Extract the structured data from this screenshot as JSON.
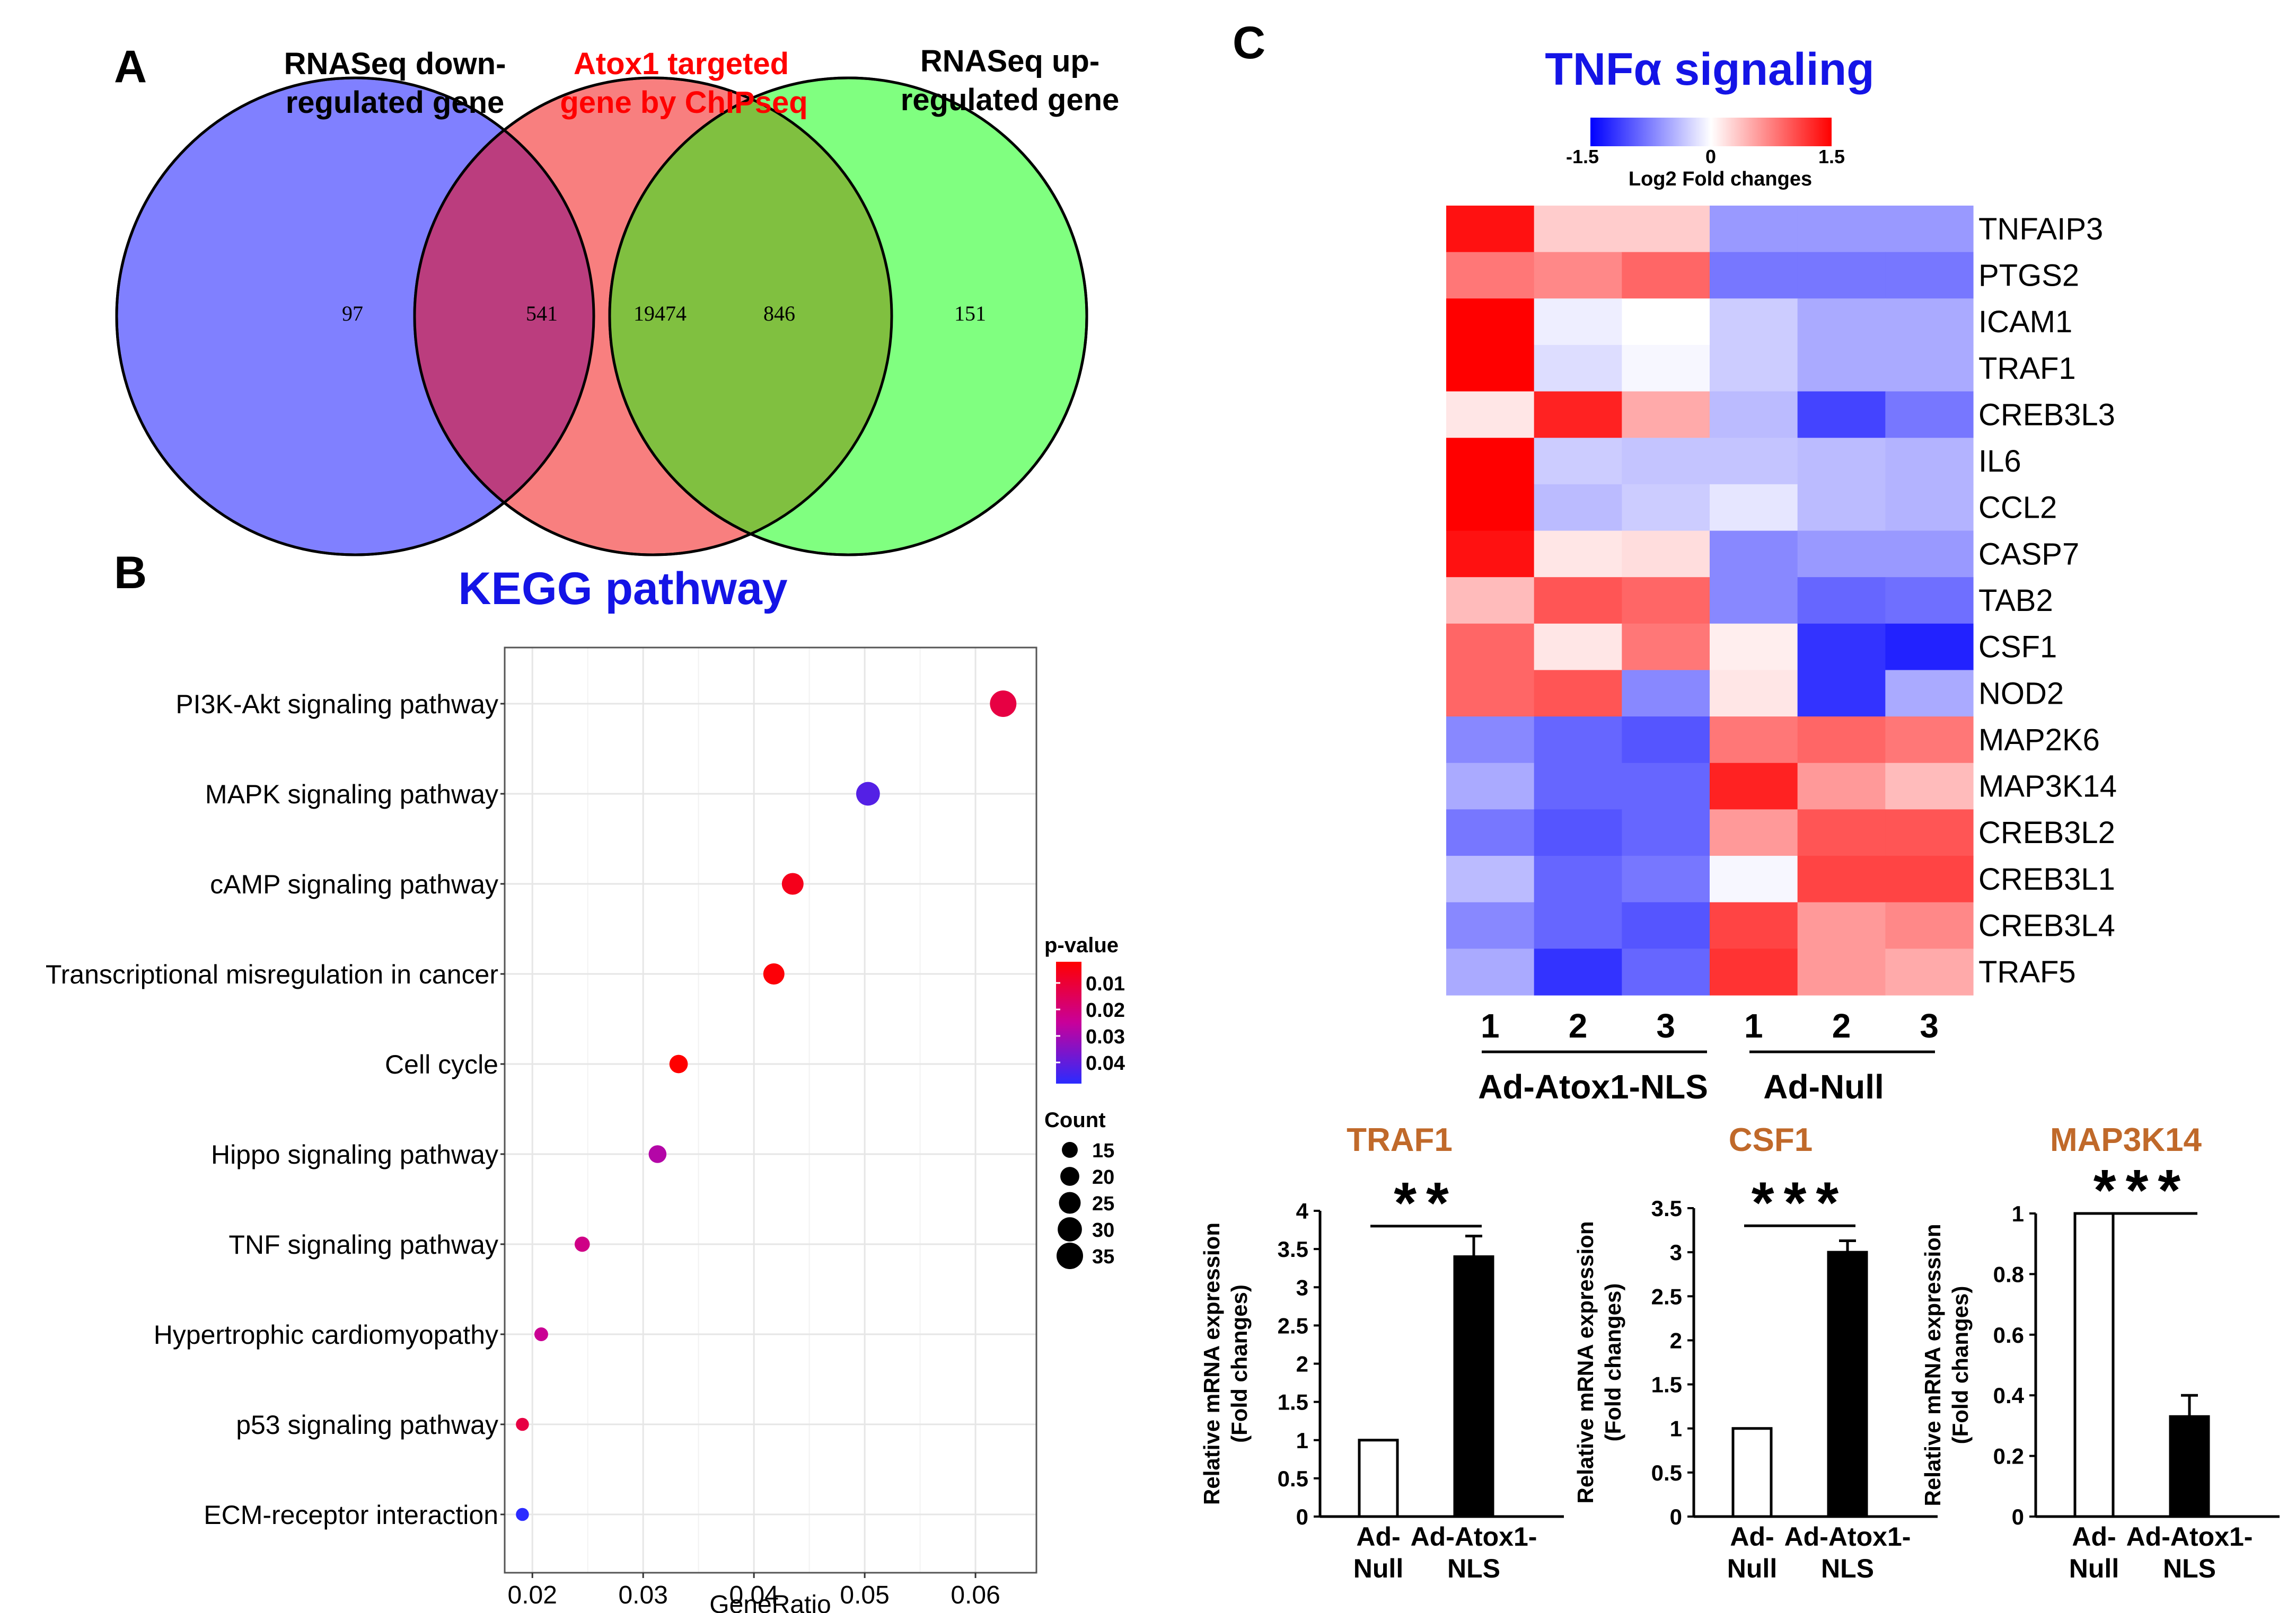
{
  "panels": {
    "a_label": "A",
    "b_label": "B",
    "c_label": "C"
  },
  "venn": {
    "sets": [
      {
        "name_line1": "RNASeq down-",
        "name_line2": "regulated gene",
        "color": "#8080ff",
        "title_color": "#000000",
        "only_count": "97"
      },
      {
        "name_line1": "Atox1 targeted",
        "name_line2": "gene by ChIPseq",
        "color": "#f87f7f",
        "title_color": "#ff0000",
        "only_count": "19474"
      },
      {
        "name_line1": "RNASeq up-",
        "name_line2": "regulated gene",
        "color": "#80ff80",
        "title_color": "#000000",
        "only_count": "151"
      }
    ],
    "overlap_down_chip": "541",
    "overlap_chip_up": "846",
    "overlap_colors": {
      "down_chip": "#bb3d7e",
      "chip_up": "#80c040"
    }
  },
  "chart_data": [
    {
      "type": "scatter",
      "title": "KEGG pathway",
      "xlabel": "GeneRatio",
      "ylabel": "",
      "xlim": [
        0.0175,
        0.0655
      ],
      "x_ticks": [
        "0.02",
        "0.03",
        "0.04",
        "0.05",
        "0.06"
      ],
      "x_tick_values": [
        0.02,
        0.03,
        0.04,
        0.05,
        0.06
      ],
      "categories": [
        "PI3K-Akt signaling pathway",
        "MAPK signaling pathway",
        "cAMP signaling pathway",
        "Transcriptional misregulation in cancer",
        "Cell cycle",
        "Hippo signaling pathway",
        "TNF signaling pathway",
        "Hypertrophic cardiomyopathy",
        "p53 signaling pathway",
        "ECM-receptor interaction"
      ],
      "gene_ratio": [
        0.0625,
        0.0503,
        0.0435,
        0.0418,
        0.0332,
        0.0313,
        0.0245,
        0.0208,
        0.0191,
        0.0191
      ],
      "count": [
        35,
        29,
        25,
        24,
        19,
        18,
        14,
        12,
        11,
        11
      ],
      "p_value": [
        0.012,
        0.042,
        0.006,
        0.003,
        0.002,
        0.028,
        0.022,
        0.024,
        0.012,
        0.048
      ],
      "legend": {
        "pvalue_title": "p-value",
        "pvalue_ticks": [
          "0.01",
          "0.02",
          "0.03",
          "0.04"
        ],
        "pvalue_tick_values": [
          0.01,
          0.02,
          0.03,
          0.04
        ],
        "pvalue_range": [
          0.002,
          0.048
        ],
        "count_title": "Count",
        "count_ticks": [
          "15",
          "20",
          "25",
          "30",
          "35"
        ],
        "count_tick_values": [
          15,
          20,
          25,
          30,
          35
        ],
        "position": "right"
      },
      "grid": true
    },
    {
      "type": "heatmap",
      "title": "TNFα signaling",
      "colorbar": {
        "label": "Log2 Fold changes",
        "ticks": [
          "-1.5",
          "0",
          "1.5"
        ],
        "range": [
          -1.5,
          1.5
        ]
      },
      "rows": [
        "TNFAIP3",
        "PTGS2",
        "ICAM1",
        "TRAF1",
        "CREB3L3",
        "IL6",
        "CCL2",
        "CASP7",
        "TAB2",
        "CSF1",
        "NOD2",
        "MAP2K6",
        "MAP3K14",
        "CREB3L2",
        "CREB3L1",
        "CREB3L4",
        "TRAF5"
      ],
      "columns": [
        "1",
        "2",
        "3",
        "1",
        "2",
        "3"
      ],
      "groups": [
        {
          "name": "Ad-Atox1-NLS",
          "span": [
            0,
            2
          ]
        },
        {
          "name": "Ad-Null",
          "span": [
            3,
            5
          ]
        }
      ],
      "values": [
        [
          1.4,
          0.3,
          0.3,
          -0.6,
          -0.6,
          -0.6
        ],
        [
          0.8,
          0.7,
          0.9,
          -0.8,
          -0.8,
          -0.8
        ],
        [
          1.5,
          -0.1,
          0.0,
          -0.3,
          -0.5,
          -0.5
        ],
        [
          1.5,
          -0.2,
          -0.05,
          -0.3,
          -0.5,
          -0.5
        ],
        [
          0.15,
          1.3,
          0.5,
          -0.4,
          -1.1,
          -0.8
        ],
        [
          1.5,
          -0.3,
          -0.35,
          -0.35,
          -0.4,
          -0.45
        ],
        [
          1.5,
          -0.4,
          -0.3,
          -0.15,
          -0.4,
          -0.45
        ],
        [
          1.4,
          0.15,
          0.2,
          -0.7,
          -0.6,
          -0.6
        ],
        [
          0.4,
          1.0,
          0.9,
          -0.7,
          -0.9,
          -0.85
        ],
        [
          0.9,
          0.15,
          0.8,
          0.1,
          -1.2,
          -1.3
        ],
        [
          0.9,
          1.0,
          -0.7,
          0.15,
          -1.2,
          -0.5
        ],
        [
          -0.7,
          -0.9,
          -1.0,
          0.8,
          0.9,
          0.8
        ],
        [
          -0.5,
          -0.9,
          -0.9,
          1.3,
          0.6,
          0.4
        ],
        [
          -0.8,
          -1.0,
          -0.9,
          0.6,
          1.0,
          1.0
        ],
        [
          -0.4,
          -0.9,
          -0.8,
          -0.05,
          1.1,
          1.1
        ],
        [
          -0.7,
          -0.9,
          -1.0,
          1.1,
          0.6,
          0.7
        ],
        [
          -0.5,
          -1.2,
          -0.9,
          1.2,
          0.6,
          0.5
        ]
      ]
    },
    {
      "type": "bar",
      "title": "TRAF1",
      "categories": [
        "Ad-\nNull",
        "Ad-Atox1-\nNLS"
      ],
      "cat_line1": [
        "Ad-",
        "Ad-Atox1-"
      ],
      "cat_line2": [
        "Null",
        "NLS"
      ],
      "values": [
        1.0,
        3.4
      ],
      "errors": [
        0,
        0.27
      ],
      "fills": [
        "#ffffff",
        "#000000"
      ],
      "ylabel_line1": "Relative mRNA expression",
      "ylabel_line2": "(Fold changes)",
      "ylim": [
        0,
        4
      ],
      "y_ticks": [
        "0",
        "0.5",
        "1",
        "1.5",
        "2",
        "2.5",
        "3",
        "3.5",
        "4"
      ],
      "y_tick_values": [
        0,
        0.5,
        1,
        1.5,
        2,
        2.5,
        3,
        3.5,
        4
      ],
      "significance": "**",
      "sig_level": 3.8
    },
    {
      "type": "bar",
      "title": "CSF1",
      "categories": [
        "Ad-\nNull",
        "Ad-Atox1-\nNLS"
      ],
      "cat_line1": [
        "Ad-",
        "Ad-Atox1-"
      ],
      "cat_line2": [
        "Null",
        "NLS"
      ],
      "values": [
        1.0,
        3.0
      ],
      "errors": [
        0,
        0.13
      ],
      "fills": [
        "#ffffff",
        "#000000"
      ],
      "ylabel_line1": "Relative mRNA expression",
      "ylabel_line2": "(Fold changes)",
      "ylim": [
        0,
        3.5
      ],
      "y_ticks": [
        "0",
        "0.5",
        "1",
        "1.5",
        "2",
        "2.5",
        "3",
        "3.5"
      ],
      "y_tick_values": [
        0,
        0.5,
        1,
        1.5,
        2,
        2.5,
        3,
        3.5
      ],
      "significance": "***",
      "sig_level": 3.3
    },
    {
      "type": "bar",
      "title": "MAP3K14",
      "categories": [
        "Ad-\nNull",
        "Ad-Atox1-\nNLS"
      ],
      "cat_line1": [
        "Ad-",
        "Ad-Atox1-"
      ],
      "cat_line2": [
        "Null",
        "NLS"
      ],
      "values": [
        1.0,
        0.33
      ],
      "errors": [
        0,
        0.07
      ],
      "fills": [
        "#ffffff",
        "#000000"
      ],
      "ylabel_line1": "Relative mRNA expression",
      "ylabel_line2": "(Fold changes)",
      "ylim": [
        0,
        1
      ],
      "y_ticks": [
        "0",
        "0.2",
        "0.4",
        "0.6",
        "0.8",
        "1"
      ],
      "y_tick_values": [
        0,
        0.2,
        0.4,
        0.6,
        0.8,
        1
      ],
      "significance": "***",
      "sig_level": 1.0
    }
  ]
}
